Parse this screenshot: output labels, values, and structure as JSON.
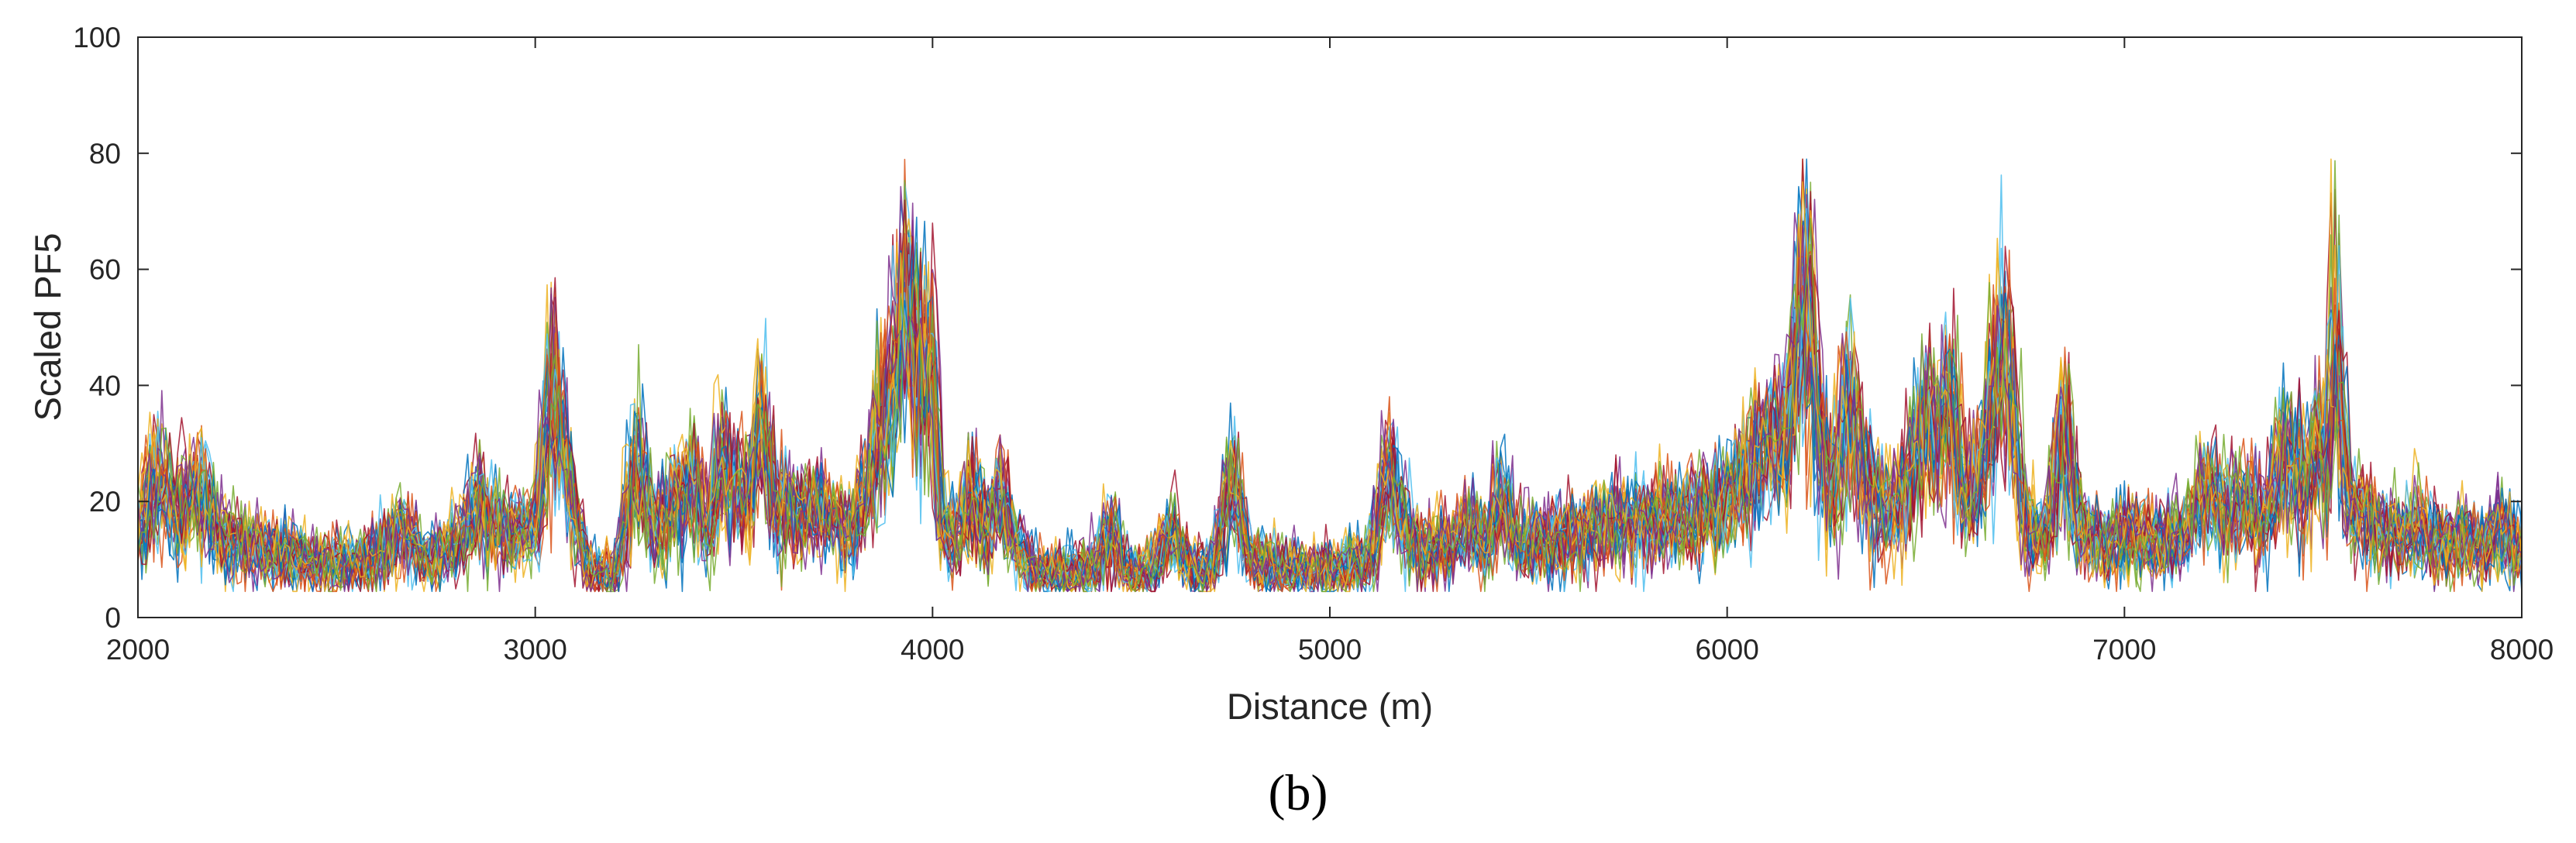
{
  "chart_data": {
    "type": "line",
    "title": "",
    "panel_label": "(b)",
    "xlabel": "Distance (m)",
    "ylabel": "Scaled PF5",
    "xlim": [
      2000,
      8000
    ],
    "ylim": [
      0,
      100
    ],
    "xticks": [
      2000,
      3000,
      4000,
      5000,
      6000,
      7000,
      8000
    ],
    "yticks": [
      0,
      20,
      40,
      60,
      80,
      100
    ],
    "grid": false,
    "legend": "none",
    "n_series": 40,
    "colors": [
      "#0072BD",
      "#D95319",
      "#EDB120",
      "#7E2F8E",
      "#77AC30",
      "#4DBEEE",
      "#A2142F"
    ],
    "envelope": {
      "x": [
        2000,
        2050,
        2100,
        2150,
        2200,
        2300,
        2400,
        2500,
        2600,
        2660,
        2720,
        2800,
        2850,
        2900,
        2950,
        3000,
        3040,
        3080,
        3130,
        3200,
        3250,
        3300,
        3350,
        3400,
        3430,
        3470,
        3500,
        3530,
        3570,
        3600,
        3650,
        3700,
        3750,
        3800,
        3850,
        3900,
        3930,
        3960,
        4000,
        4020,
        4060,
        4100,
        4130,
        4170,
        4200,
        4250,
        4300,
        4400,
        4450,
        4500,
        4550,
        4600,
        4650,
        4700,
        4750,
        4800,
        4850,
        4900,
        5000,
        5100,
        5150,
        5180,
        5220,
        5300,
        5350,
        5400,
        5430,
        5470,
        5500,
        5600,
        5700,
        5800,
        5900,
        5950,
        6000,
        6050,
        6100,
        6150,
        6200,
        6230,
        6260,
        6300,
        6350,
        6400,
        6450,
        6500,
        6530,
        6560,
        6600,
        6650,
        6680,
        6700,
        6750,
        6800,
        6850,
        6870,
        6900,
        6950,
        7000,
        7050,
        7100,
        7150,
        7200,
        7250,
        7300,
        7350,
        7400,
        7450,
        7480,
        7510,
        7530,
        7560,
        7600,
        7650,
        7700,
        7750,
        7800,
        7850,
        7900,
        7950,
        8000
      ],
      "mean": [
        15,
        25,
        17,
        24,
        14,
        12,
        10,
        9,
        11,
        15,
        10,
        12,
        20,
        16,
        15,
        16,
        42,
        24,
        8,
        7,
        28,
        15,
        20,
        25,
        14,
        26,
        22,
        20,
        34,
        20,
        18,
        19,
        17,
        14,
        28,
        40,
        55,
        45,
        42,
        15,
        14,
        22,
        16,
        22,
        14,
        8,
        8,
        8,
        15,
        7,
        8,
        15,
        8,
        8,
        24,
        10,
        9,
        8,
        8,
        10,
        27,
        16,
        12,
        12,
        16,
        12,
        22,
        12,
        13,
        14,
        16,
        17,
        17,
        19,
        20,
        26,
        30,
        32,
        60,
        30,
        22,
        38,
        24,
        18,
        22,
        35,
        30,
        38,
        20,
        28,
        42,
        48,
        15,
        14,
        35,
        20,
        14,
        12,
        14,
        14,
        13,
        14,
        23,
        18,
        20,
        16,
        28,
        22,
        30,
        26,
        50,
        20,
        18,
        15,
        14,
        16,
        13,
        14,
        12,
        16,
        11
      ]
    }
  }
}
